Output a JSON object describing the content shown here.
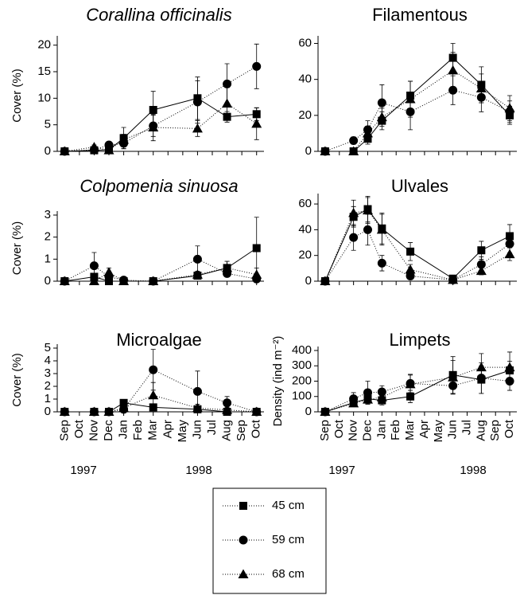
{
  "chart_data": [
    {
      "type": "line",
      "title": "Corallina officinalis",
      "italic": true,
      "ylabel": "Cover (%)",
      "x": [
        0,
        2,
        3,
        4,
        6,
        9,
        11,
        13
      ],
      "xlim": [
        -0.5,
        13.5
      ],
      "xticks": [
        0,
        1,
        2,
        3,
        4,
        5,
        6,
        7,
        8,
        9,
        10,
        11,
        12,
        13
      ],
      "ylim": [
        0,
        21
      ],
      "yticks": [
        0,
        5,
        10,
        15,
        20
      ],
      "series": [
        {
          "name": "45 cm",
          "color": "#000",
          "marker": "square",
          "dash": "none",
          "values": [
            0,
            0.2,
            0.3,
            2.5,
            7.8,
            10,
            6.5,
            7
          ],
          "errors": [
            0,
            0.3,
            0.3,
            2,
            3.5,
            4,
            1,
            1.2
          ]
        },
        {
          "name": "59 cm",
          "color": "#000",
          "marker": "circle",
          "dash": "1,2",
          "values": [
            0,
            0.3,
            1.2,
            1.5,
            4.8,
            9.3,
            12.7,
            16
          ],
          "errors": [
            0,
            0.3,
            0.4,
            1,
            2,
            4,
            3.8,
            4.2
          ]
        },
        {
          "name": "68 cm",
          "color": "#000",
          "marker": "triangle",
          "dash": "1,2",
          "values": [
            0,
            0.8,
            0.2,
            2.2,
            4.5,
            4.3,
            9,
            5.2
          ],
          "errors": [
            0,
            0.4,
            0.3,
            1,
            2.5,
            1.5,
            3,
            3
          ]
        }
      ]
    },
    {
      "type": "line",
      "title": "Filamentous",
      "italic": false,
      "x": [
        0,
        2,
        3,
        4,
        6,
        9,
        11,
        13
      ],
      "xlim": [
        -0.5,
        13.5
      ],
      "xticks": [
        0,
        1,
        2,
        3,
        4,
        5,
        6,
        7,
        8,
        9,
        10,
        11,
        12,
        13
      ],
      "ylim": [
        0,
        62
      ],
      "yticks": [
        0,
        20,
        40,
        60
      ],
      "series": [
        {
          "name": "45 cm",
          "color": "#000",
          "marker": "square",
          "dash": "none",
          "values": [
            0,
            0,
            7,
            17,
            31,
            52,
            37,
            20
          ],
          "errors": [
            0,
            1,
            3,
            5,
            8,
            8,
            10,
            5
          ]
        },
        {
          "name": "59 cm",
          "color": "#000",
          "marker": "circle",
          "dash": "1,2",
          "values": [
            0,
            6,
            12,
            27,
            22,
            34,
            30,
            22
          ],
          "errors": [
            0,
            2,
            5,
            10,
            10,
            8,
            8,
            6
          ]
        },
        {
          "name": "68 cm",
          "color": "#000",
          "marker": "triangle",
          "dash": "1,2",
          "values": [
            0,
            0,
            10,
            19,
            29,
            45,
            35,
            24
          ],
          "errors": [
            0,
            1,
            4,
            5,
            10,
            10,
            8,
            7
          ]
        }
      ]
    },
    {
      "type": "line",
      "title": "Colpomenia sinuosa",
      "italic": true,
      "ylabel": "Cover (%)",
      "x": [
        0,
        2,
        3,
        4,
        6,
        9,
        11,
        13
      ],
      "xlim": [
        -0.5,
        13.5
      ],
      "xticks": [
        0,
        1,
        2,
        3,
        4,
        5,
        6,
        7,
        8,
        9,
        10,
        11,
        12,
        13
      ],
      "ylim": [
        0,
        3
      ],
      "yticks": [
        0,
        1,
        2,
        3
      ],
      "series": [
        {
          "name": "45 cm",
          "color": "#000",
          "marker": "square",
          "dash": "none",
          "values": [
            0,
            0.2,
            0,
            0,
            0,
            0.25,
            0.6,
            1.5
          ],
          "errors": [
            0,
            0.15,
            0.1,
            0.05,
            0,
            0.1,
            0.3,
            1.4
          ]
        },
        {
          "name": "59 cm",
          "color": "#000",
          "marker": "circle",
          "dash": "1,2",
          "values": [
            0,
            0.7,
            0.2,
            0.05,
            0,
            1,
            0.35,
            0.1
          ],
          "errors": [
            0,
            0.6,
            0.2,
            0.05,
            0,
            0.6,
            0.15,
            0.1
          ]
        },
        {
          "name": "68 cm",
          "color": "#000",
          "marker": "triangle",
          "dash": "1,2",
          "values": [
            0,
            0,
            0.4,
            0,
            0,
            0.3,
            0.6,
            0.3
          ],
          "errors": [
            0,
            0.05,
            0.2,
            0.05,
            0,
            0.15,
            0.3,
            0.3
          ]
        }
      ]
    },
    {
      "type": "line",
      "title": "Ulvales",
      "italic": false,
      "x": [
        0,
        2,
        3,
        4,
        6,
        9,
        11,
        13
      ],
      "xlim": [
        -0.5,
        13.5
      ],
      "xticks": [
        0,
        1,
        2,
        3,
        4,
        5,
        6,
        7,
        8,
        9,
        10,
        11,
        12,
        13
      ],
      "ylim": [
        0,
        65
      ],
      "yticks": [
        0,
        20,
        40,
        60
      ],
      "series": [
        {
          "name": "45 cm",
          "color": "#000",
          "marker": "square",
          "dash": "none",
          "values": [
            0,
            50,
            56,
            41,
            23,
            2,
            24,
            35
          ],
          "errors": [
            0,
            8,
            10,
            12,
            7,
            1,
            7,
            9
          ]
        },
        {
          "name": "59 cm",
          "color": "#000",
          "marker": "circle",
          "dash": "1,2",
          "values": [
            0,
            34,
            40,
            14,
            4,
            1,
            13,
            29
          ],
          "errors": [
            0,
            10,
            12,
            6,
            2,
            1,
            6,
            7
          ]
        },
        {
          "name": "68 cm",
          "color": "#000",
          "marker": "triangle",
          "dash": "1,2",
          "values": [
            0,
            53,
            55,
            40,
            9,
            1,
            8,
            21
          ],
          "errors": [
            0,
            10,
            10,
            12,
            4,
            1,
            3,
            5
          ]
        }
      ]
    },
    {
      "type": "line",
      "title": "Microalgae",
      "italic": false,
      "ylabel": "Cover (%)",
      "x": [
        0,
        2,
        3,
        4,
        6,
        9,
        11,
        13
      ],
      "xlim": [
        -0.5,
        13.5
      ],
      "xticks": [
        {
          "value": 0,
          "label": "Sep"
        },
        {
          "value": 1,
          "label": "Oct"
        },
        {
          "value": 2,
          "label": "Nov"
        },
        {
          "value": 3,
          "label": "Dec"
        },
        {
          "value": 4,
          "label": "Jan"
        },
        {
          "value": 5,
          "label": "Feb"
        },
        {
          "value": 6,
          "label": "Mar"
        },
        {
          "value": 7,
          "label": "Apr"
        },
        {
          "value": 8,
          "label": "May"
        },
        {
          "value": 9,
          "label": "Jun"
        },
        {
          "value": 10,
          "label": "Jul"
        },
        {
          "value": 11,
          "label": "Aug"
        },
        {
          "value": 12,
          "label": "Sep"
        },
        {
          "value": 13,
          "label": "Oct"
        }
      ],
      "years": [
        "1997",
        "1998"
      ],
      "ylim": [
        0,
        5
      ],
      "yticks": [
        0,
        1,
        2,
        3,
        4,
        5
      ],
      "series": [
        {
          "name": "45 cm",
          "color": "#000",
          "marker": "square",
          "dash": "none",
          "values": [
            0,
            0,
            0,
            0.7,
            0.35,
            0.2,
            0,
            0
          ],
          "errors": [
            0,
            0,
            0,
            0.2,
            0.2,
            0.1,
            0,
            0
          ]
        },
        {
          "name": "59 cm",
          "color": "#000",
          "marker": "circle",
          "dash": "1,2",
          "values": [
            0,
            0,
            0,
            0.2,
            3.3,
            1.6,
            0.7,
            0
          ],
          "errors": [
            0,
            0,
            0,
            0.2,
            1.6,
            1.6,
            0.5,
            0
          ]
        },
        {
          "name": "68 cm",
          "color": "#000",
          "marker": "triangle",
          "dash": "1,2",
          "values": [
            0,
            0,
            0,
            0.3,
            1.3,
            0.3,
            0.15,
            0
          ],
          "errors": [
            0,
            0,
            0,
            0.2,
            1,
            0.3,
            0.2,
            0
          ]
        }
      ]
    },
    {
      "type": "line",
      "title": "Limpets",
      "italic": false,
      "ylabel": "Density (ind m⁻²)",
      "x": [
        0,
        2,
        3,
        4,
        6,
        9,
        11,
        13
      ],
      "xlim": [
        -0.5,
        13.5
      ],
      "xticks": [
        {
          "value": 0,
          "label": "Sep"
        },
        {
          "value": 1,
          "label": "Oct"
        },
        {
          "value": 2,
          "label": "Nov"
        },
        {
          "value": 3,
          "label": "Dec"
        },
        {
          "value": 4,
          "label": "Jan"
        },
        {
          "value": 5,
          "label": "Feb"
        },
        {
          "value": 6,
          "label": "Mar"
        },
        {
          "value": 7,
          "label": "Apr"
        },
        {
          "value": 8,
          "label": "May"
        },
        {
          "value": 9,
          "label": "Jun"
        },
        {
          "value": 10,
          "label": "Jul"
        },
        {
          "value": 11,
          "label": "Aug"
        },
        {
          "value": 12,
          "label": "Sep"
        },
        {
          "value": 13,
          "label": "Oct"
        }
      ],
      "years": [
        "1997",
        "1998"
      ],
      "ylim": [
        0,
        400
      ],
      "yticks": [
        0,
        100,
        200,
        300,
        400
      ],
      "series": [
        {
          "name": "45 cm",
          "color": "#000",
          "marker": "square",
          "dash": "none",
          "values": [
            0,
            60,
            85,
            75,
            100,
            240,
            210,
            270
          ],
          "errors": [
            0,
            20,
            30,
            30,
            40,
            120,
            90,
            60
          ]
        },
        {
          "name": "59 cm",
          "color": "#000",
          "marker": "circle",
          "dash": "1,2",
          "values": [
            0,
            85,
            125,
            130,
            185,
            170,
            220,
            200
          ],
          "errors": [
            0,
            40,
            75,
            40,
            60,
            50,
            100,
            60
          ]
        },
        {
          "name": "68 cm",
          "color": "#000",
          "marker": "triangle",
          "dash": "1,2",
          "values": [
            0,
            55,
            80,
            95,
            180,
            225,
            290,
            290
          ],
          "errors": [
            0,
            20,
            30,
            30,
            60,
            110,
            90,
            100
          ]
        }
      ]
    }
  ]
}
